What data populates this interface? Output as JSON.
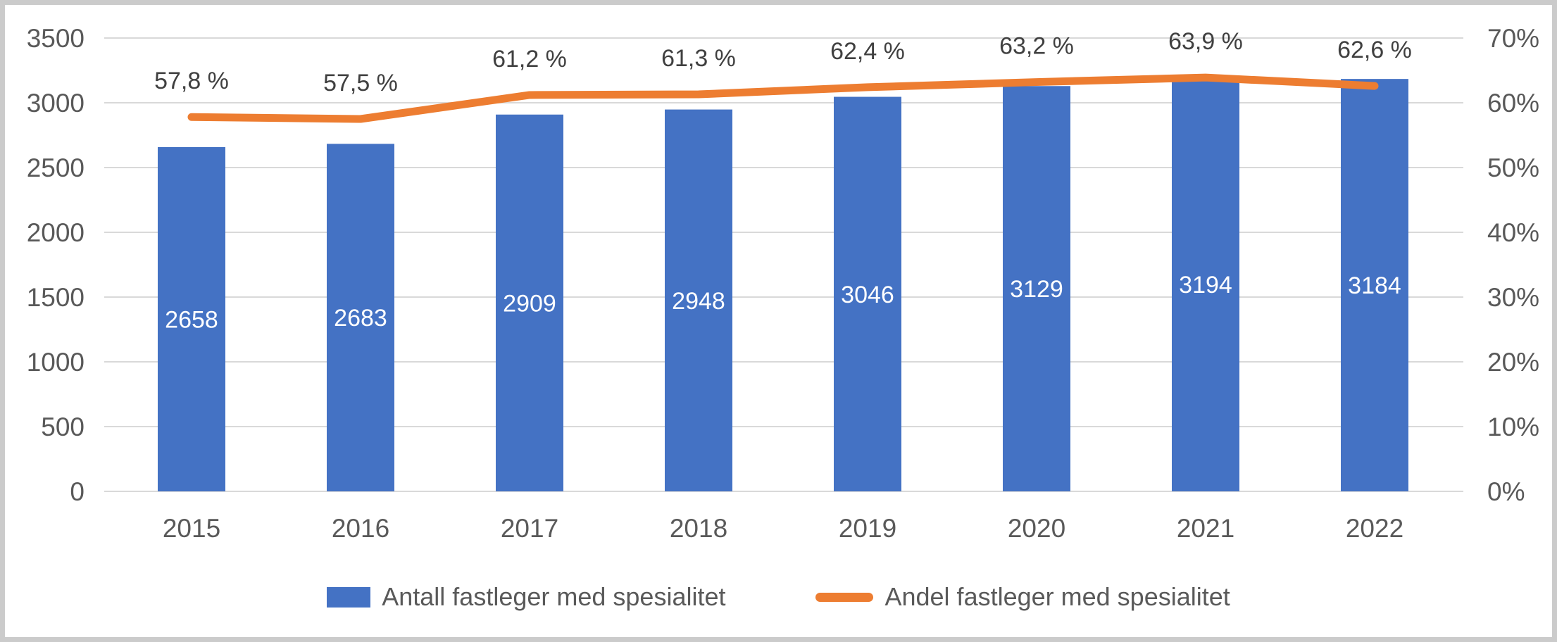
{
  "figure": {
    "background_color": "#ffffff",
    "border_color": "#cbcbcb",
    "text_color": "#595959",
    "gridline_color": "#d9d9d9"
  },
  "legend": {
    "items": [
      {
        "label": "Antall fastleger med spesialitet",
        "marker": "bar-swatch",
        "color": "#4472C4"
      },
      {
        "label": "Andel fastleger med spesialitet",
        "marker": "line-swatch",
        "color": "#ED7D31"
      }
    ]
  },
  "chart_data": {
    "type": "combo-bar-line",
    "categories": [
      "2015",
      "2016",
      "2017",
      "2018",
      "2019",
      "2020",
      "2021",
      "2022"
    ],
    "series": [
      {
        "name": "Antall fastleger med spesialitet",
        "type": "bar",
        "axis": "left",
        "color": "#4472C4",
        "values": [
          2658,
          2683,
          2909,
          2948,
          3046,
          3129,
          3194,
          3184
        ],
        "data_labels": [
          "2658",
          "2683",
          "2909",
          "2948",
          "3046",
          "3129",
          "3194",
          "3184"
        ],
        "data_label_color": "#ffffff",
        "data_label_position": "center"
      },
      {
        "name": "Andel fastleger med spesialitet",
        "type": "line",
        "axis": "right",
        "color": "#ED7D31",
        "values": [
          57.8,
          57.5,
          61.2,
          61.3,
          62.4,
          63.2,
          63.9,
          62.6
        ],
        "data_labels": [
          "57,8 %",
          "57,5 %",
          "61,2 %",
          "61,3 %",
          "62,4 %",
          "63,2 %",
          "63,9 %",
          "62,6 %"
        ],
        "data_label_color": "#404040",
        "data_label_position": "above"
      }
    ],
    "left_axis": {
      "min": 0,
      "max": 3500,
      "step": 500,
      "tick_labels": [
        "0",
        "500",
        "1000",
        "1500",
        "2000",
        "2500",
        "3000",
        "3500"
      ]
    },
    "right_axis": {
      "min": 0,
      "max": 70,
      "step": 10,
      "tick_labels": [
        "0%",
        "10%",
        "20%",
        "30%",
        "40%",
        "50%",
        "60%",
        "70%"
      ]
    },
    "grid": true,
    "legend_position": "bottom",
    "title": ""
  }
}
